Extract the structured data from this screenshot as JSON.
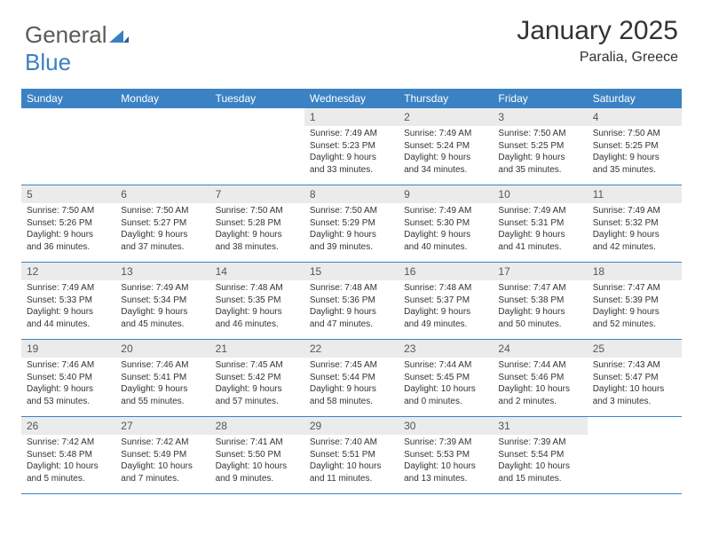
{
  "brand": {
    "part1": "General",
    "part2": "Blue"
  },
  "title": "January 2025",
  "location": "Paralia, Greece",
  "colors": {
    "header_bg": "#3b82c4",
    "daynum_bg": "#ebebeb",
    "rule": "#3b82c4",
    "text": "#333333",
    "logo_gray": "#5a5a5a",
    "logo_blue": "#3b7fc4"
  },
  "day_names": [
    "Sunday",
    "Monday",
    "Tuesday",
    "Wednesday",
    "Thursday",
    "Friday",
    "Saturday"
  ],
  "weeks": [
    [
      {
        "n": "",
        "empty": true
      },
      {
        "n": "",
        "empty": true
      },
      {
        "n": "",
        "empty": true
      },
      {
        "n": "1",
        "sr": "7:49 AM",
        "ss": "5:23 PM",
        "dl": "9 hours and 33 minutes."
      },
      {
        "n": "2",
        "sr": "7:49 AM",
        "ss": "5:24 PM",
        "dl": "9 hours and 34 minutes."
      },
      {
        "n": "3",
        "sr": "7:50 AM",
        "ss": "5:25 PM",
        "dl": "9 hours and 35 minutes."
      },
      {
        "n": "4",
        "sr": "7:50 AM",
        "ss": "5:25 PM",
        "dl": "9 hours and 35 minutes."
      }
    ],
    [
      {
        "n": "5",
        "sr": "7:50 AM",
        "ss": "5:26 PM",
        "dl": "9 hours and 36 minutes."
      },
      {
        "n": "6",
        "sr": "7:50 AM",
        "ss": "5:27 PM",
        "dl": "9 hours and 37 minutes."
      },
      {
        "n": "7",
        "sr": "7:50 AM",
        "ss": "5:28 PM",
        "dl": "9 hours and 38 minutes."
      },
      {
        "n": "8",
        "sr": "7:50 AM",
        "ss": "5:29 PM",
        "dl": "9 hours and 39 minutes."
      },
      {
        "n": "9",
        "sr": "7:49 AM",
        "ss": "5:30 PM",
        "dl": "9 hours and 40 minutes."
      },
      {
        "n": "10",
        "sr": "7:49 AM",
        "ss": "5:31 PM",
        "dl": "9 hours and 41 minutes."
      },
      {
        "n": "11",
        "sr": "7:49 AM",
        "ss": "5:32 PM",
        "dl": "9 hours and 42 minutes."
      }
    ],
    [
      {
        "n": "12",
        "sr": "7:49 AM",
        "ss": "5:33 PM",
        "dl": "9 hours and 44 minutes."
      },
      {
        "n": "13",
        "sr": "7:49 AM",
        "ss": "5:34 PM",
        "dl": "9 hours and 45 minutes."
      },
      {
        "n": "14",
        "sr": "7:48 AM",
        "ss": "5:35 PM",
        "dl": "9 hours and 46 minutes."
      },
      {
        "n": "15",
        "sr": "7:48 AM",
        "ss": "5:36 PM",
        "dl": "9 hours and 47 minutes."
      },
      {
        "n": "16",
        "sr": "7:48 AM",
        "ss": "5:37 PM",
        "dl": "9 hours and 49 minutes."
      },
      {
        "n": "17",
        "sr": "7:47 AM",
        "ss": "5:38 PM",
        "dl": "9 hours and 50 minutes."
      },
      {
        "n": "18",
        "sr": "7:47 AM",
        "ss": "5:39 PM",
        "dl": "9 hours and 52 minutes."
      }
    ],
    [
      {
        "n": "19",
        "sr": "7:46 AM",
        "ss": "5:40 PM",
        "dl": "9 hours and 53 minutes."
      },
      {
        "n": "20",
        "sr": "7:46 AM",
        "ss": "5:41 PM",
        "dl": "9 hours and 55 minutes."
      },
      {
        "n": "21",
        "sr": "7:45 AM",
        "ss": "5:42 PM",
        "dl": "9 hours and 57 minutes."
      },
      {
        "n": "22",
        "sr": "7:45 AM",
        "ss": "5:44 PM",
        "dl": "9 hours and 58 minutes."
      },
      {
        "n": "23",
        "sr": "7:44 AM",
        "ss": "5:45 PM",
        "dl": "10 hours and 0 minutes."
      },
      {
        "n": "24",
        "sr": "7:44 AM",
        "ss": "5:46 PM",
        "dl": "10 hours and 2 minutes."
      },
      {
        "n": "25",
        "sr": "7:43 AM",
        "ss": "5:47 PM",
        "dl": "10 hours and 3 minutes."
      }
    ],
    [
      {
        "n": "26",
        "sr": "7:42 AM",
        "ss": "5:48 PM",
        "dl": "10 hours and 5 minutes."
      },
      {
        "n": "27",
        "sr": "7:42 AM",
        "ss": "5:49 PM",
        "dl": "10 hours and 7 minutes."
      },
      {
        "n": "28",
        "sr": "7:41 AM",
        "ss": "5:50 PM",
        "dl": "10 hours and 9 minutes."
      },
      {
        "n": "29",
        "sr": "7:40 AM",
        "ss": "5:51 PM",
        "dl": "10 hours and 11 minutes."
      },
      {
        "n": "30",
        "sr": "7:39 AM",
        "ss": "5:53 PM",
        "dl": "10 hours and 13 minutes."
      },
      {
        "n": "31",
        "sr": "7:39 AM",
        "ss": "5:54 PM",
        "dl": "10 hours and 15 minutes."
      },
      {
        "n": "",
        "empty": true
      }
    ]
  ],
  "labels": {
    "sunrise": "Sunrise:",
    "sunset": "Sunset:",
    "daylight": "Daylight:"
  }
}
